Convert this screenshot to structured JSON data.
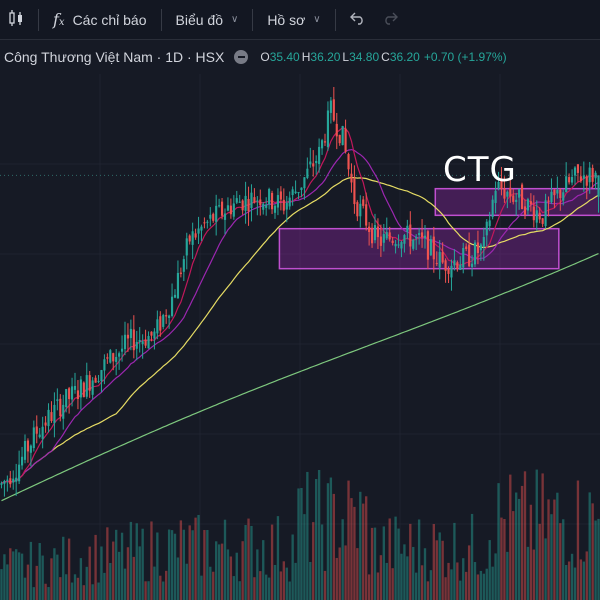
{
  "toolbar": {
    "bar_style_icon": "candlestick-icon",
    "indicators_icon": "fx-icon",
    "indicators_label": "Các chỉ báo",
    "chart_label": "Biểu đồ",
    "profile_label": "Hồ sơ",
    "undo_icon": "undo-icon",
    "redo_icon": "redo-icon"
  },
  "legend": {
    "symbol_title": "Công Thương Việt Nam · 1D · HSX",
    "open_key": "O",
    "open": "35.40",
    "high_key": "H",
    "high": "36.20",
    "low_key": "L",
    "low": "34.80",
    "close_key": "C",
    "close": "36.20",
    "change": "+0.70 (+1.97%)"
  },
  "annotation_text": "CTG",
  "colors": {
    "background": "#161a25",
    "up": "#26a69a",
    "down": "#ef5350",
    "ma_fast": "#c2185b",
    "ma_mid": "#9c27b0",
    "ma_slow": "#e6dc64",
    "ma_long": "#7ec87e",
    "box_fill": "#9c27b0",
    "box_stroke": "#c04fd0",
    "last_price_line": "#2f6b68"
  },
  "chart_data": {
    "type": "candlestick",
    "symbol": "CTG",
    "interval": "1D",
    "exchange": "HSX",
    "last": {
      "open": 35.4,
      "high": 36.2,
      "low": 34.8,
      "close": 36.2
    },
    "control_points": [
      [
        0,
        24.6
      ],
      [
        6,
        25.4
      ],
      [
        12,
        26.6
      ],
      [
        20,
        27.6
      ],
      [
        28,
        28.3
      ],
      [
        36,
        29.2
      ],
      [
        44,
        30.0
      ],
      [
        52,
        30.2
      ],
      [
        58,
        31.6
      ],
      [
        64,
        33.8
      ],
      [
        72,
        34.6
      ],
      [
        80,
        35.2
      ],
      [
        88,
        35.4
      ],
      [
        96,
        35.1
      ],
      [
        102,
        35.9
      ],
      [
        108,
        37.0
      ],
      [
        112,
        38.6
      ],
      [
        116,
        37.6
      ],
      [
        120,
        35.3
      ],
      [
        128,
        33.7
      ],
      [
        136,
        34.0
      ],
      [
        144,
        33.6
      ],
      [
        150,
        32.9
      ],
      [
        158,
        33.1
      ],
      [
        164,
        33.5
      ],
      [
        168,
        35.8
      ],
      [
        176,
        35.3
      ],
      [
        184,
        34.7
      ],
      [
        190,
        35.6
      ],
      [
        196,
        36.2
      ]
    ],
    "volume_pattern": "mixed, spikes near the peak and recent bars",
    "moving_averages": [
      "fast",
      "mid",
      "slow",
      "long"
    ],
    "zones": [
      {
        "name": "support-zone",
        "y_range": [
          32.7,
          34.2
        ],
        "x_range": [
          95,
          190
        ]
      },
      {
        "name": "resistance-zone",
        "y_range": [
          34.7,
          35.7
        ],
        "x_range": [
          148,
          205
        ]
      }
    ],
    "last_price_line": 36.2
  }
}
